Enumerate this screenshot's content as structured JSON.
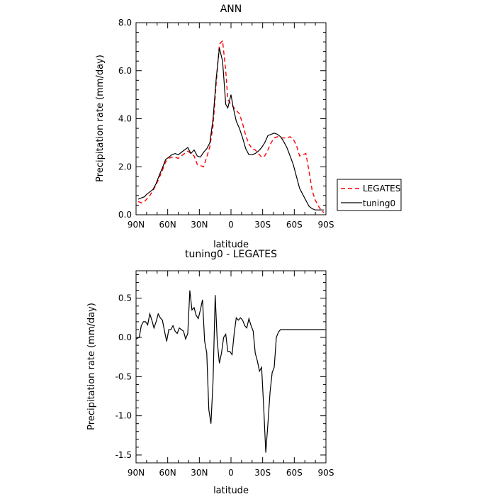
{
  "chart_data": [
    {
      "type": "line",
      "title": "ANN",
      "xlabel": "latitude",
      "ylabel": "Precipitation rate (mm/day)",
      "xlim": [
        90,
        -90
      ],
      "ylim": [
        0.0,
        8.0
      ],
      "xticks": [
        {
          "value": 90,
          "label": "90N"
        },
        {
          "value": 60,
          "label": "60N"
        },
        {
          "value": 30,
          "label": "30N"
        },
        {
          "value": 0,
          "label": "0"
        },
        {
          "value": -30,
          "label": "30S"
        },
        {
          "value": -60,
          "label": "60S"
        },
        {
          "value": -90,
          "label": "90S"
        }
      ],
      "yticks": [
        {
          "value": 0,
          "label": "0.0"
        },
        {
          "value": 2,
          "label": "2.0"
        },
        {
          "value": 4,
          "label": "4.0"
        },
        {
          "value": 6,
          "label": "6.0"
        },
        {
          "value": 8,
          "label": "8.0"
        }
      ],
      "legend_position": "right-outside",
      "series": [
        {
          "name": "LEGATES",
          "color": "#ff0000",
          "dash": "dashed",
          "x": [
            88,
            85,
            82,
            80,
            77,
            74,
            71,
            68,
            65,
            62,
            59,
            56,
            53,
            50,
            47,
            44,
            41,
            38,
            35,
            32,
            29,
            26,
            23,
            20,
            17,
            14,
            11,
            8,
            5,
            3,
            0,
            -2,
            -5,
            -8,
            -11,
            -14,
            -17,
            -20,
            -23,
            -26,
            -29,
            -32,
            -35,
            -38,
            -41,
            -44,
            -47,
            -50,
            -53,
            -56,
            -59,
            -62,
            -65,
            -68,
            -71,
            -74,
            -77,
            -80,
            -83,
            -86,
            -88
          ],
          "y": [
            0.55,
            0.5,
            0.55,
            0.65,
            0.8,
            1.0,
            1.25,
            1.55,
            1.85,
            2.2,
            2.35,
            2.4,
            2.4,
            2.35,
            2.45,
            2.55,
            2.65,
            2.55,
            2.45,
            2.1,
            2.05,
            2.0,
            2.4,
            2.85,
            3.7,
            5.5,
            7.1,
            7.25,
            6.0,
            4.8,
            4.6,
            4.5,
            4.35,
            4.2,
            3.8,
            3.3,
            2.95,
            2.75,
            2.7,
            2.55,
            2.4,
            2.45,
            2.7,
            3.0,
            3.2,
            3.25,
            3.2,
            3.2,
            3.2,
            3.25,
            3.15,
            2.9,
            2.45,
            2.5,
            2.55,
            1.8,
            1.0,
            0.6,
            0.35,
            0.15,
            0.1
          ]
        },
        {
          "name": "tuning0",
          "color": "#000000",
          "dash": "solid",
          "x": [
            88,
            85,
            82,
            80,
            77,
            74,
            71,
            68,
            65,
            62,
            59,
            56,
            53,
            50,
            47,
            44,
            41,
            38,
            35,
            32,
            29,
            26,
            23,
            20,
            17,
            14,
            11,
            8,
            5,
            3,
            0,
            -2,
            -5,
            -8,
            -11,
            -14,
            -17,
            -20,
            -23,
            -26,
            -29,
            -32,
            -35,
            -38,
            -41,
            -44,
            -47,
            -50,
            -53,
            -56,
            -59,
            -62,
            -65,
            -68,
            -71,
            -74,
            -77,
            -80,
            -83,
            -86,
            -88
          ],
          "y": [
            0.65,
            0.7,
            0.75,
            0.85,
            0.95,
            1.05,
            1.3,
            1.65,
            1.95,
            2.3,
            2.4,
            2.5,
            2.55,
            2.5,
            2.6,
            2.7,
            2.8,
            2.55,
            2.7,
            2.45,
            2.4,
            2.6,
            2.75,
            3.0,
            4.0,
            5.7,
            6.95,
            6.4,
            4.6,
            4.45,
            5.0,
            4.5,
            3.9,
            3.6,
            3.2,
            2.75,
            2.5,
            2.5,
            2.55,
            2.65,
            2.8,
            3.0,
            3.3,
            3.35,
            3.4,
            3.35,
            3.25,
            3.05,
            2.8,
            2.45,
            2.1,
            1.6,
            1.1,
            0.85,
            0.6,
            0.35,
            0.25,
            0.2,
            0.2,
            0.2,
            0.2
          ]
        }
      ]
    },
    {
      "type": "line",
      "title": "tuning0 - LEGATES",
      "xlabel": "latitude",
      "ylabel": "Precipitation rate (mm/day)",
      "xlim": [
        90,
        -90
      ],
      "ylim": [
        -1.6,
        0.85
      ],
      "xticks": [
        {
          "value": 90,
          "label": "90N"
        },
        {
          "value": 60,
          "label": "60N"
        },
        {
          "value": 30,
          "label": "30N"
        },
        {
          "value": 0,
          "label": "0"
        },
        {
          "value": -30,
          "label": "30S"
        },
        {
          "value": -60,
          "label": "60S"
        },
        {
          "value": -90,
          "label": "90S"
        }
      ],
      "yticks": [
        {
          "value": -1.5,
          "label": "-1.5"
        },
        {
          "value": -1.0,
          "label": "-1.0"
        },
        {
          "value": -0.5,
          "label": "-0.5"
        },
        {
          "value": 0.0,
          "label": "0.0"
        },
        {
          "value": 0.5,
          "label": "0.5"
        }
      ],
      "series": [
        {
          "name": "",
          "color": "#000000",
          "dash": "solid",
          "x": [
            90,
            87,
            85,
            83,
            81,
            79,
            77,
            75,
            73,
            71,
            69,
            67,
            65,
            63,
            61,
            59,
            57,
            55,
            53,
            51,
            49,
            47,
            45,
            43,
            41,
            39,
            37,
            35,
            33,
            31,
            29,
            27,
            25,
            23,
            21,
            19,
            17,
            15,
            13,
            11,
            9,
            7,
            5,
            3,
            1,
            -1,
            -3,
            -5,
            -7,
            -9,
            -11,
            -13,
            -15,
            -17,
            -19,
            -21,
            -23,
            -25,
            -27,
            -29,
            -31,
            -33,
            -35,
            -37,
            -39,
            -41,
            -43,
            -45,
            -47,
            -49,
            -51,
            -53,
            -55,
            -57,
            -59,
            -61,
            -63,
            -65,
            -67,
            -69,
            -71,
            -73,
            -75,
            -77,
            -79,
            -81,
            -83,
            -85,
            -87,
            -89
          ],
          "y": [
            -0.02,
            0.0,
            0.15,
            0.2,
            0.2,
            0.16,
            0.3,
            0.22,
            0.12,
            0.2,
            0.3,
            0.25,
            0.22,
            0.08,
            -0.05,
            0.1,
            0.1,
            0.15,
            0.08,
            0.05,
            0.12,
            0.1,
            0.08,
            -0.02,
            0.05,
            0.6,
            0.35,
            0.38,
            0.28,
            0.24,
            0.35,
            0.48,
            -0.05,
            -0.2,
            -0.92,
            -1.1,
            -0.55,
            0.54,
            -0.05,
            -0.33,
            -0.2,
            0.0,
            0.04,
            -0.18,
            -0.18,
            -0.22,
            0.05,
            0.25,
            0.22,
            0.25,
            0.22,
            0.15,
            0.12,
            0.24,
            0.15,
            0.08,
            -0.2,
            -0.3,
            -0.43,
            -0.38,
            -0.9,
            -1.47,
            -1.1,
            -0.7,
            -0.45,
            -0.38,
            0.0,
            0.07,
            0.1,
            0.1,
            0.1,
            0.1,
            0.1,
            0.1,
            0.1,
            0.1,
            0.1,
            0.1,
            0.1,
            0.1,
            0.1,
            0.1,
            0.1,
            0.1,
            0.1,
            0.1,
            0.1,
            0.1,
            0.1,
            0.1
          ]
        }
      ]
    }
  ]
}
